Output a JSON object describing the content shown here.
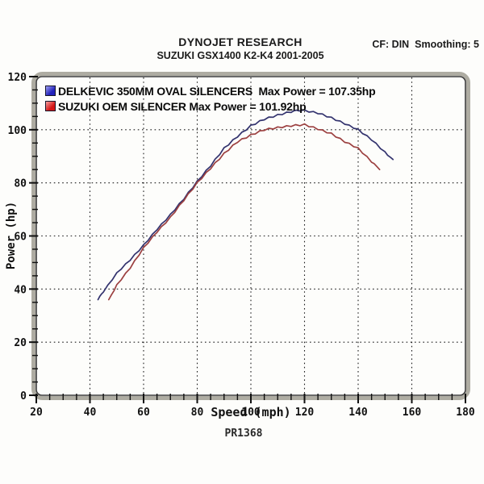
{
  "header": {
    "title": "DYNOJET RESEARCH",
    "subtitle": "SUZUKI GSX1400 K2-K4 2001-2005",
    "settings": "CF: DIN  Smoothing: 5"
  },
  "legend": [
    {
      "label": "DELKEVIC 350MM OVAL SILENCERS  Max Power = 107.35hp",
      "swatch_color": "#2222bb",
      "swatch_light": "#9f9ff2"
    },
    {
      "label": "SUZUKI OEM SILENCER Max Power = 101.92hp",
      "swatch_color": "#d41515",
      "swatch_light": "#f6a0a0"
    }
  ],
  "footer": {
    "run_id": "PR1368"
  },
  "chart_data": {
    "type": "line",
    "title": "DYNOJET RESEARCH",
    "subtitle": "SUZUKI GSX1400 K2-K4 2001-2005",
    "xlabel": "Speed (mph)",
    "ylabel": "Power (hp)",
    "xlim": [
      20,
      180
    ],
    "ylim": [
      0,
      120
    ],
    "x_major_ticks": [
      20,
      40,
      60,
      80,
      100,
      120,
      140,
      160,
      180
    ],
    "y_major_ticks": [
      0,
      20,
      40,
      60,
      80,
      100,
      120
    ],
    "minor_tick_step": 5,
    "grid": "dotted",
    "legend_position": "top-left",
    "series": [
      {
        "name": "DELKEVIC 350MM OVAL SILENCERS",
        "max_power_hp": 107.35,
        "color": "#33336e",
        "points": [
          [
            43,
            36
          ],
          [
            45,
            39
          ],
          [
            50,
            46
          ],
          [
            55,
            51
          ],
          [
            60,
            56.5
          ],
          [
            65,
            62.5
          ],
          [
            70,
            68
          ],
          [
            75,
            74
          ],
          [
            80,
            80.5
          ],
          [
            85,
            86.5
          ],
          [
            90,
            93
          ],
          [
            95,
            97.5
          ],
          [
            100,
            101.5
          ],
          [
            105,
            104
          ],
          [
            110,
            105.5
          ],
          [
            115,
            106.8
          ],
          [
            118,
            107.35
          ],
          [
            120,
            107.2
          ],
          [
            125,
            106.3
          ],
          [
            130,
            104.5
          ],
          [
            135,
            102.3
          ],
          [
            140,
            100
          ],
          [
            145,
            96.3
          ],
          [
            150,
            91.5
          ],
          [
            153,
            88.8
          ]
        ]
      },
      {
        "name": "SUZUKI OEM SILENCER",
        "max_power_hp": 101.92,
        "color": "#9c4040",
        "points": [
          [
            47,
            36
          ],
          [
            50,
            41.5
          ],
          [
            55,
            48
          ],
          [
            60,
            55.5
          ],
          [
            65,
            61.5
          ],
          [
            70,
            67
          ],
          [
            75,
            73.5
          ],
          [
            80,
            80
          ],
          [
            85,
            85.5
          ],
          [
            90,
            91
          ],
          [
            95,
            95.5
          ],
          [
            100,
            98
          ],
          [
            105,
            100
          ],
          [
            110,
            100.8
          ],
          [
            115,
            101.5
          ],
          [
            120,
            101.92
          ],
          [
            125,
            100.3
          ],
          [
            130,
            98.5
          ],
          [
            135,
            95.5
          ],
          [
            140,
            93
          ],
          [
            145,
            88
          ],
          [
            148,
            85
          ]
        ]
      }
    ]
  }
}
